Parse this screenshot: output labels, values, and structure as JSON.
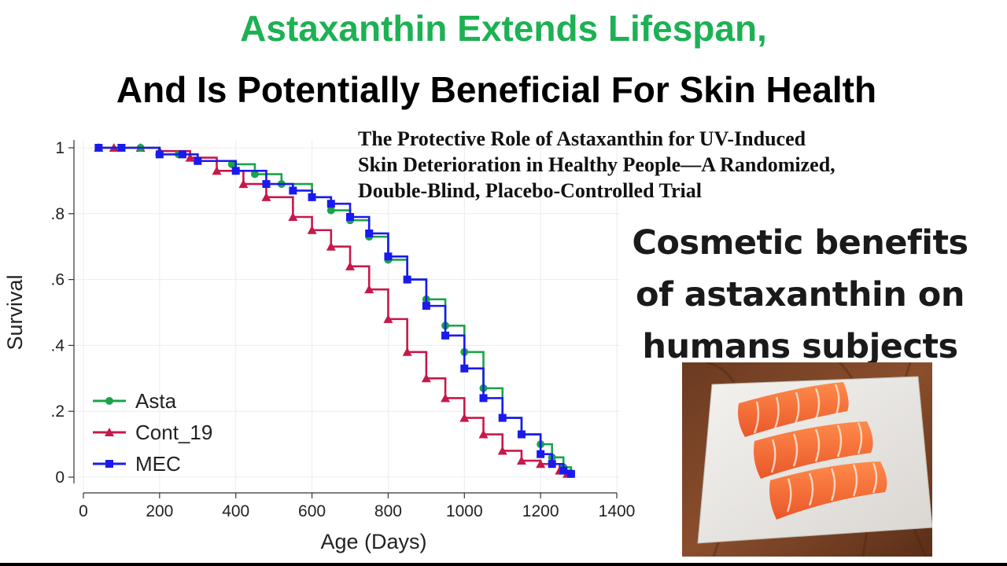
{
  "header": {
    "title_line1": "Astaxanthin Extends Lifespan,",
    "title_line2": "And Is Potentially Beneficial For Skin Health"
  },
  "paper": {
    "line1": "The Protective Role of Astaxanthin for UV-Induced",
    "line2": "Skin Deterioration in Healthy People—A Randomized,",
    "line3": "Double-Blind, Placebo-Controlled Trial"
  },
  "cosmetic": {
    "line1": "Cosmetic benefits",
    "line2": "of astaxanthin on",
    "line3": "humans subjects"
  },
  "colors": {
    "title_green": "#1db154",
    "asta": "#1aa34a",
    "cont": "#c8184a",
    "mec": "#1a1aee"
  },
  "photo": {
    "icon": "salmon-fillets-on-marble-board"
  },
  "chart_data": {
    "type": "line",
    "title": "",
    "xlabel": "Age (Days)",
    "ylabel": "Survival",
    "xlim": [
      0,
      1400
    ],
    "ylim": [
      0,
      1
    ],
    "xticks": [
      {
        "v": 0,
        "label": "0"
      },
      {
        "v": 200,
        "label": "200"
      },
      {
        "v": 400,
        "label": "400"
      },
      {
        "v": 600,
        "label": "600"
      },
      {
        "v": 800,
        "label": "800"
      },
      {
        "v": 1000,
        "label": "1000"
      },
      {
        "v": 1200,
        "label": "1200"
      },
      {
        "v": 1400,
        "label": "1400"
      }
    ],
    "yticks": [
      {
        "v": 0,
        "label": "0"
      },
      {
        "v": 0.2,
        "label": ".2"
      },
      {
        "v": 0.4,
        "label": ".4"
      },
      {
        "v": 0.6,
        "label": ".6"
      },
      {
        "v": 0.8,
        "label": ".8"
      },
      {
        "v": 1,
        "label": "1"
      }
    ],
    "grid": true,
    "legend": "bottom-left",
    "series": [
      {
        "name": "Asta",
        "color": "#1aa34a",
        "marker": "circle",
        "points": [
          [
            40,
            1
          ],
          [
            150,
            1
          ],
          [
            200,
            0.98
          ],
          [
            250,
            0.98
          ],
          [
            300,
            0.96
          ],
          [
            390,
            0.95
          ],
          [
            450,
            0.92
          ],
          [
            520,
            0.89
          ],
          [
            600,
            0.85
          ],
          [
            650,
            0.81
          ],
          [
            700,
            0.78
          ],
          [
            750,
            0.73
          ],
          [
            800,
            0.66
          ],
          [
            850,
            0.6
          ],
          [
            900,
            0.54
          ],
          [
            950,
            0.46
          ],
          [
            1000,
            0.38
          ],
          [
            1050,
            0.27
          ],
          [
            1100,
            0.18
          ],
          [
            1150,
            0.13
          ],
          [
            1200,
            0.1
          ],
          [
            1230,
            0.06
          ],
          [
            1260,
            0.03
          ],
          [
            1280,
            0.01
          ]
        ]
      },
      {
        "name": "Cont_19",
        "color": "#c8184a",
        "marker": "triangle",
        "points": [
          [
            40,
            1
          ],
          [
            80,
            1
          ],
          [
            150,
            1
          ],
          [
            200,
            0.99
          ],
          [
            280,
            0.97
          ],
          [
            350,
            0.93
          ],
          [
            420,
            0.89
          ],
          [
            480,
            0.85
          ],
          [
            550,
            0.79
          ],
          [
            600,
            0.75
          ],
          [
            650,
            0.7
          ],
          [
            700,
            0.64
          ],
          [
            750,
            0.57
          ],
          [
            800,
            0.48
          ],
          [
            850,
            0.38
          ],
          [
            900,
            0.3
          ],
          [
            950,
            0.24
          ],
          [
            1000,
            0.18
          ],
          [
            1050,
            0.13
          ],
          [
            1100,
            0.08
          ],
          [
            1150,
            0.05
          ],
          [
            1200,
            0.04
          ],
          [
            1250,
            0.02
          ],
          [
            1270,
            0.01
          ]
        ]
      },
      {
        "name": "MEC",
        "color": "#1a1aee",
        "marker": "square",
        "points": [
          [
            40,
            1
          ],
          [
            100,
            1
          ],
          [
            200,
            0.98
          ],
          [
            260,
            0.98
          ],
          [
            300,
            0.96
          ],
          [
            400,
            0.93
          ],
          [
            480,
            0.89
          ],
          [
            550,
            0.87
          ],
          [
            600,
            0.85
          ],
          [
            650,
            0.83
          ],
          [
            700,
            0.79
          ],
          [
            750,
            0.74
          ],
          [
            800,
            0.67
          ],
          [
            850,
            0.6
          ],
          [
            900,
            0.52
          ],
          [
            950,
            0.43
          ],
          [
            1000,
            0.33
          ],
          [
            1050,
            0.24
          ],
          [
            1100,
            0.18
          ],
          [
            1150,
            0.13
          ],
          [
            1200,
            0.07
          ],
          [
            1230,
            0.04
          ],
          [
            1260,
            0.02
          ],
          [
            1280,
            0.01
          ]
        ]
      }
    ]
  }
}
